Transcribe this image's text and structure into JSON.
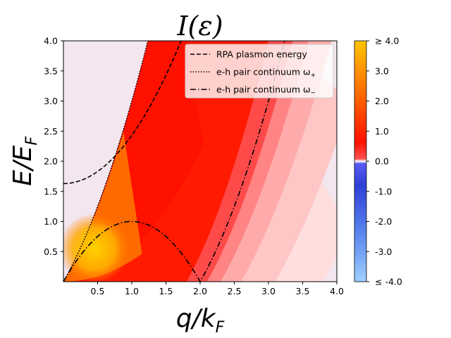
{
  "chart_data": {
    "type": "heatmap",
    "title": "I(ε)",
    "xlabel": {
      "main": "q/k",
      "sub": "F"
    },
    "ylabel": {
      "main": "E/E",
      "sub": "F"
    },
    "xlim": [
      0.0,
      4.0
    ],
    "ylim": [
      0.0,
      4.0
    ],
    "xticks": [
      "0.5",
      "1.0",
      "1.5",
      "2.0",
      "2.5",
      "3.0",
      "3.5",
      "4.0"
    ],
    "yticks": [
      "0.5",
      "1.0",
      "1.5",
      "2.0",
      "2.5",
      "3.0",
      "3.5",
      "4.0"
    ],
    "xtick_values": [
      0.5,
      1.0,
      1.5,
      2.0,
      2.5,
      3.0,
      3.5,
      4.0
    ],
    "ytick_values": [
      0.5,
      1.0,
      1.5,
      2.0,
      2.5,
      3.0,
      3.5,
      4.0
    ],
    "colorbar": {
      "range": [
        -4.0,
        4.0
      ],
      "ticks": [
        "≥  4.0",
        "3.0",
        "2.0",
        "1.0",
        "0.0",
        "-1.0",
        "-2.0",
        "-3.0",
        "≤  -4.0"
      ],
      "tick_values": [
        4.0,
        3.0,
        2.0,
        1.0,
        0.0,
        -1.0,
        -2.0,
        -3.0,
        -4.0
      ]
    },
    "background_color": "#f3e6ee",
    "legend": {
      "placement": "top-right",
      "entries": [
        {
          "label": "RPA plasmon energy",
          "style": "dashed"
        },
        {
          "label": "e-h pair continuum ω",
          "sub": "+",
          "style": "dotted"
        },
        {
          "label": "e-h pair continuum ω",
          "sub": "−",
          "style": "dashdot"
        }
      ]
    },
    "series": [
      {
        "style": "dashed",
        "x": [
          0.0,
          0.25,
          0.5,
          0.75,
          1.0,
          1.25,
          1.5
        ],
        "y": [
          1.63,
          1.68,
          1.83,
          2.08,
          2.43,
          2.88,
          3.43
        ]
      },
      {
        "style": "dotted",
        "x": [
          0.0,
          0.5,
          1.0,
          1.25,
          1.5,
          1.6
        ],
        "y": [
          0.0,
          1.25,
          3.0,
          4.06,
          5.25,
          5.76
        ]
      },
      {
        "style": "dashdot",
        "x": [
          0.0,
          0.5,
          1.0,
          1.5,
          2.0,
          2.5,
          3.0,
          3.25
        ],
        "y": [
          0.0,
          0.75,
          1.0,
          0.75,
          0.0,
          1.25,
          3.0,
          4.06
        ]
      }
    ]
  }
}
